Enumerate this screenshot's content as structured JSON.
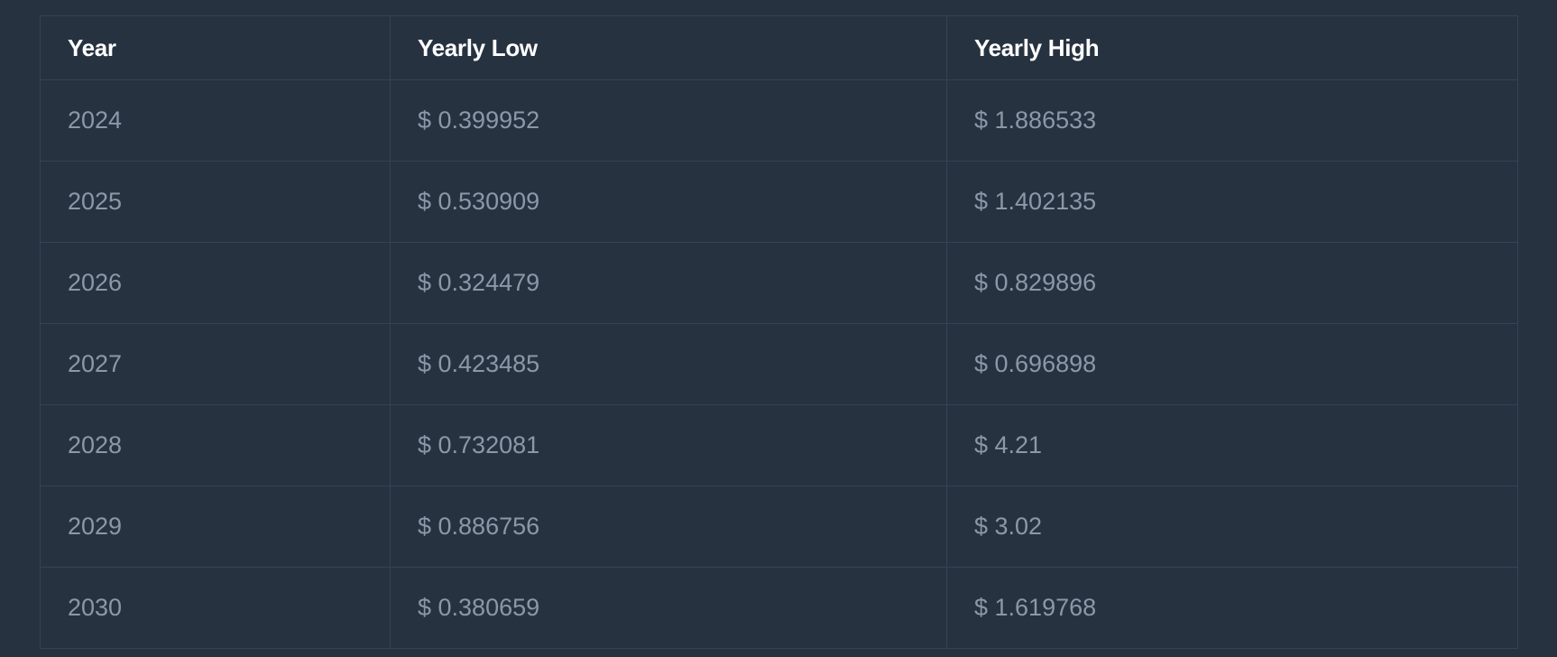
{
  "table": {
    "headers": {
      "year": "Year",
      "low": "Yearly Low",
      "high": "Yearly High"
    },
    "rows": [
      {
        "year": "2024",
        "low": "$ 0.399952",
        "high": "$ 1.886533"
      },
      {
        "year": "2025",
        "low": "$ 0.530909",
        "high": "$ 1.402135"
      },
      {
        "year": "2026",
        "low": "$ 0.324479",
        "high": "$ 0.829896"
      },
      {
        "year": "2027",
        "low": "$ 0.423485",
        "high": "$ 0.696898"
      },
      {
        "year": "2028",
        "low": "$ 0.732081",
        "high": "$ 4.21"
      },
      {
        "year": "2029",
        "low": "$ 0.886756",
        "high": "$ 3.02"
      },
      {
        "year": "2030",
        "low": "$ 0.380659",
        "high": "$ 1.619768"
      }
    ]
  },
  "colors": {
    "background": "#273241",
    "border": "#354255",
    "header_text": "#ffffff",
    "cell_text": "#8b98a8"
  }
}
